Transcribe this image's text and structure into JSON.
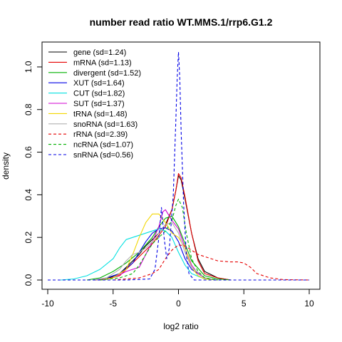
{
  "chart_data": {
    "type": "line",
    "title": "number read ratio WT.MMS.1/rrp6.G1.2",
    "xlabel": "log2 ratio",
    "ylabel": "density",
    "xlim": [
      -10,
      10
    ],
    "ylim": [
      0,
      1.07
    ],
    "xticks": [
      -10,
      -5,
      0,
      5,
      10
    ],
    "xtick_labels": [
      "-10",
      "-5",
      "0",
      "5",
      "10"
    ],
    "yticks": [
      0.0,
      0.2,
      0.4,
      0.6,
      0.8,
      1.0
    ],
    "ytick_labels": [
      "0.0",
      "0.2",
      "0.4",
      "0.6",
      "0.8",
      "1.0"
    ],
    "grid": false,
    "legend_position": "top-left",
    "series": [
      {
        "name": "gene (sd=1.24)",
        "color": "#000000",
        "dash": false,
        "points": [
          [
            -6.5,
            0
          ],
          [
            -5.5,
            0.005
          ],
          [
            -4.5,
            0.03
          ],
          [
            -4,
            0.06
          ],
          [
            -3.5,
            0.09
          ],
          [
            -3,
            0.12
          ],
          [
            -2.5,
            0.16
          ],
          [
            -2,
            0.19
          ],
          [
            -1.5,
            0.22
          ],
          [
            -1,
            0.26
          ],
          [
            -0.5,
            0.33
          ],
          [
            -0.2,
            0.42
          ],
          [
            0,
            0.49
          ],
          [
            0.2,
            0.47
          ],
          [
            0.5,
            0.38
          ],
          [
            1,
            0.22
          ],
          [
            1.5,
            0.1
          ],
          [
            2,
            0.04
          ],
          [
            3,
            0.01
          ],
          [
            4,
            0
          ]
        ]
      },
      {
        "name": "mRNA (sd=1.13)",
        "color": "#e60000",
        "dash": false,
        "points": [
          [
            -6.5,
            0
          ],
          [
            -5.5,
            0.005
          ],
          [
            -4.5,
            0.02
          ],
          [
            -4,
            0.05
          ],
          [
            -3.5,
            0.08
          ],
          [
            -3,
            0.11
          ],
          [
            -2.5,
            0.14
          ],
          [
            -2,
            0.17
          ],
          [
            -1.5,
            0.21
          ],
          [
            -1,
            0.25
          ],
          [
            -0.5,
            0.33
          ],
          [
            -0.2,
            0.42
          ],
          [
            0,
            0.5
          ],
          [
            0.2,
            0.48
          ],
          [
            0.5,
            0.39
          ],
          [
            1,
            0.22
          ],
          [
            1.5,
            0.09
          ],
          [
            2,
            0.03
          ],
          [
            3,
            0.01
          ],
          [
            4,
            0
          ]
        ]
      },
      {
        "name": "divergent (sd=1.52)",
        "color": "#00b000",
        "dash": false,
        "points": [
          [
            -7,
            0
          ],
          [
            -6,
            0.01
          ],
          [
            -5,
            0.04
          ],
          [
            -4,
            0.08
          ],
          [
            -3,
            0.13
          ],
          [
            -2,
            0.2
          ],
          [
            -1.5,
            0.25
          ],
          [
            -1,
            0.29
          ],
          [
            -0.5,
            0.3
          ],
          [
            0,
            0.25
          ],
          [
            0.5,
            0.17
          ],
          [
            1,
            0.09
          ],
          [
            2,
            0.02
          ],
          [
            3,
            0.005
          ],
          [
            4,
            0
          ]
        ]
      },
      {
        "name": "XUT (sd=1.64)",
        "color": "#0000e6",
        "dash": false,
        "points": [
          [
            -6.5,
            0
          ],
          [
            -5.5,
            0.01
          ],
          [
            -4.5,
            0.03
          ],
          [
            -3.5,
            0.08
          ],
          [
            -3,
            0.13
          ],
          [
            -2.5,
            0.18
          ],
          [
            -2,
            0.22
          ],
          [
            -1.5,
            0.24
          ],
          [
            -1,
            0.245
          ],
          [
            -0.5,
            0.23
          ],
          [
            0,
            0.18
          ],
          [
            0.5,
            0.1
          ],
          [
            1,
            0.05
          ],
          [
            2,
            0.01
          ],
          [
            3,
            0
          ]
        ]
      },
      {
        "name": "CUT (sd=1.82)",
        "color": "#00e0e0",
        "dash": false,
        "points": [
          [
            -9,
            0
          ],
          [
            -8,
            0.005
          ],
          [
            -7,
            0.02
          ],
          [
            -6,
            0.05
          ],
          [
            -5,
            0.1
          ],
          [
            -4.5,
            0.15
          ],
          [
            -4,
            0.19
          ],
          [
            -3.5,
            0.2
          ],
          [
            -3,
            0.21
          ],
          [
            -2.5,
            0.22
          ],
          [
            -2,
            0.23
          ],
          [
            -1.5,
            0.24
          ],
          [
            -1,
            0.23
          ],
          [
            -0.5,
            0.2
          ],
          [
            0,
            0.13
          ],
          [
            0.5,
            0.07
          ],
          [
            1,
            0.03
          ],
          [
            2,
            0.005
          ],
          [
            3,
            0
          ]
        ]
      },
      {
        "name": "SUT (sd=1.37)",
        "color": "#d000d0",
        "dash": false,
        "points": [
          [
            -6,
            0
          ],
          [
            -5,
            0.01
          ],
          [
            -4,
            0.04
          ],
          [
            -3.5,
            0.05
          ],
          [
            -3,
            0.06
          ],
          [
            -2.5,
            0.12
          ],
          [
            -2,
            0.18
          ],
          [
            -1.5,
            0.25
          ],
          [
            -1.2,
            0.32
          ],
          [
            -1,
            0.33
          ],
          [
            -0.5,
            0.28
          ],
          [
            0,
            0.24
          ],
          [
            0.5,
            0.15
          ],
          [
            1,
            0.07
          ],
          [
            1.5,
            0.03
          ],
          [
            2,
            0.01
          ],
          [
            3,
            0
          ]
        ]
      },
      {
        "name": "tRNA (sd=1.48)",
        "color": "#f2d600",
        "dash": false,
        "points": [
          [
            -6,
            0
          ],
          [
            -5,
            0.01
          ],
          [
            -4,
            0.05
          ],
          [
            -3.5,
            0.12
          ],
          [
            -3,
            0.2
          ],
          [
            -2.5,
            0.27
          ],
          [
            -2,
            0.31
          ],
          [
            -1.5,
            0.31
          ],
          [
            -1,
            0.27
          ],
          [
            -0.5,
            0.22
          ],
          [
            0,
            0.2
          ],
          [
            0.5,
            0.15
          ],
          [
            1,
            0.06
          ],
          [
            1.5,
            0.02
          ],
          [
            2,
            0.005
          ],
          [
            3,
            0
          ]
        ]
      },
      {
        "name": "snoRNA (sd=1.63)",
        "color": "#b0b0b0",
        "dash": false,
        "points": [
          [
            -6.5,
            0
          ],
          [
            -5.5,
            0.01
          ],
          [
            -4.5,
            0.05
          ],
          [
            -4,
            0.09
          ],
          [
            -3.5,
            0.12
          ],
          [
            -3,
            0.13
          ],
          [
            -2.5,
            0.15
          ],
          [
            -2,
            0.18
          ],
          [
            -1.5,
            0.22
          ],
          [
            -1,
            0.26
          ],
          [
            -0.5,
            0.27
          ],
          [
            0,
            0.22
          ],
          [
            0.5,
            0.13
          ],
          [
            1,
            0.06
          ],
          [
            2,
            0.01
          ],
          [
            3,
            0
          ]
        ]
      },
      {
        "name": "rRNA (sd=2.39)",
        "color": "#e60000",
        "dash": true,
        "points": [
          [
            -5,
            0
          ],
          [
            -3,
            0.01
          ],
          [
            -2,
            0.03
          ],
          [
            -1.5,
            0.05
          ],
          [
            -1,
            0.1
          ],
          [
            -0.5,
            0.14
          ],
          [
            0,
            0.165
          ],
          [
            0.5,
            0.16
          ],
          [
            1,
            0.14
          ],
          [
            1.5,
            0.12
          ],
          [
            2,
            0.11
          ],
          [
            2.5,
            0.1
          ],
          [
            3,
            0.09
          ],
          [
            4,
            0.085
          ],
          [
            4.5,
            0.085
          ],
          [
            5,
            0.08
          ],
          [
            5.5,
            0.06
          ],
          [
            6,
            0.03
          ],
          [
            7,
            0.01
          ],
          [
            8,
            0.002
          ],
          [
            10,
            0
          ]
        ]
      },
      {
        "name": "ncRNA (sd=1.07)",
        "color": "#00b000",
        "dash": true,
        "points": [
          [
            -6,
            0
          ],
          [
            -4.5,
            0.01
          ],
          [
            -3.5,
            0.03
          ],
          [
            -3,
            0.07
          ],
          [
            -2.5,
            0.12
          ],
          [
            -2,
            0.17
          ],
          [
            -1.5,
            0.2
          ],
          [
            -1,
            0.23
          ],
          [
            -0.5,
            0.28
          ],
          [
            -0.2,
            0.35
          ],
          [
            0,
            0.38
          ],
          [
            0.3,
            0.34
          ],
          [
            0.6,
            0.22
          ],
          [
            1,
            0.1
          ],
          [
            1.5,
            0.04
          ],
          [
            2,
            0.01
          ],
          [
            3,
            0
          ]
        ]
      },
      {
        "name": "snRNA (sd=0.56)",
        "color": "#0000e6",
        "dash": true,
        "points": [
          [
            -10,
            0
          ],
          [
            -4,
            0
          ],
          [
            -2.2,
            0.005
          ],
          [
            -1.8,
            0.05
          ],
          [
            -1.5,
            0.2
          ],
          [
            -1.3,
            0.34
          ],
          [
            -1.1,
            0.2
          ],
          [
            -0.9,
            0.1
          ],
          [
            -0.7,
            0.15
          ],
          [
            -0.4,
            0.4
          ],
          [
            -0.2,
            0.75
          ],
          [
            -0.1,
            0.95
          ],
          [
            0,
            1.07
          ],
          [
            0.1,
            0.95
          ],
          [
            0.2,
            0.7
          ],
          [
            0.4,
            0.35
          ],
          [
            0.6,
            0.12
          ],
          [
            0.8,
            0.03
          ],
          [
            1.2,
            0
          ],
          [
            10,
            0
          ]
        ]
      }
    ]
  }
}
